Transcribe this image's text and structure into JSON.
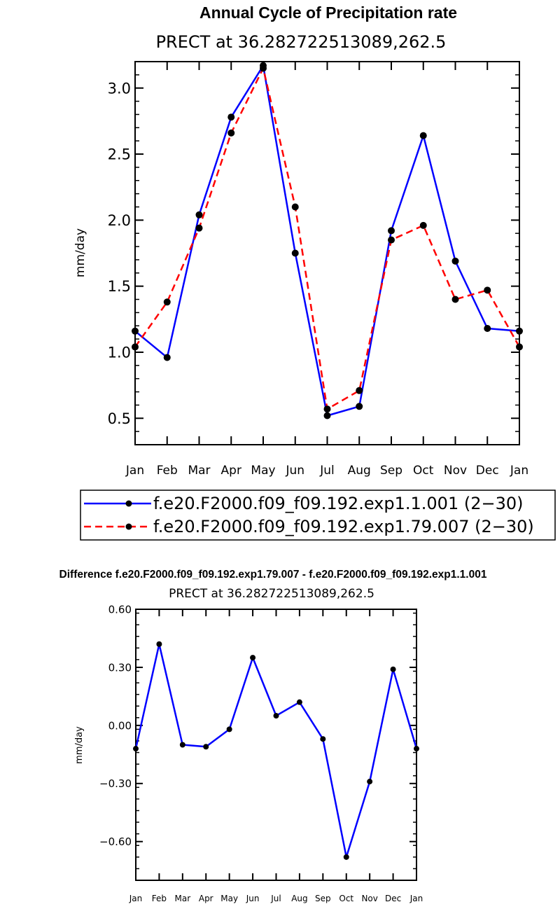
{
  "chart_data": [
    {
      "type": "line",
      "title": "Annual Cycle of Precipitation rate",
      "subtitle": "PRECT at 36.282722513089,262.5",
      "ylabel": "mm/day",
      "xlabel": "",
      "categories": [
        "Jan",
        "Feb",
        "Mar",
        "Apr",
        "May",
        "Jun",
        "Jul",
        "Aug",
        "Sep",
        "Oct",
        "Nov",
        "Dec",
        "Jan"
      ],
      "ylim": [
        0.3,
        3.2
      ],
      "yticks": [
        0.5,
        1.0,
        1.5,
        2.0,
        2.5,
        3.0
      ],
      "ytick_labels": [
        "0.5",
        "1.0",
        "1.5",
        "2.0",
        "2.5",
        "3.0"
      ],
      "legend": "bottom",
      "series": [
        {
          "name": "f.e20.F2000.f09_f09.192.exp1.1.001 (2−30)",
          "color": "#0000ff",
          "dash": "solid",
          "values": [
            1.16,
            0.96,
            2.04,
            2.78,
            3.17,
            1.75,
            0.52,
            0.59,
            1.92,
            2.64,
            1.69,
            1.18,
            1.16
          ]
        },
        {
          "name": "f.e20.F2000.f09_f09.192.exp1.79.007 (2−30)",
          "color": "#ff0000",
          "dash": "dashed",
          "values": [
            1.04,
            1.38,
            1.94,
            2.66,
            3.15,
            2.1,
            0.57,
            0.71,
            1.85,
            1.96,
            1.4,
            1.47,
            1.04
          ]
        }
      ]
    },
    {
      "type": "line",
      "title": "Difference f.e20.F2000.f09_f09.192.exp1.79.007 - f.e20.F2000.f09_f09.192.exp1.1.001",
      "subtitle": "PRECT at 36.282722513089,262.5",
      "ylabel": "mm/day",
      "xlabel": "",
      "categories": [
        "Jan",
        "Feb",
        "Mar",
        "Apr",
        "May",
        "Jun",
        "Jul",
        "Aug",
        "Sep",
        "Oct",
        "Nov",
        "Dec",
        "Jan"
      ],
      "ylim": [
        -0.8,
        0.6
      ],
      "yticks": [
        -0.6,
        -0.3,
        0.0,
        0.3,
        0.6
      ],
      "ytick_labels": [
        "−0.60",
        "−0.30",
        "0.00",
        "0.30",
        "0.60"
      ],
      "series": [
        {
          "color": "#0000ff",
          "dash": "solid",
          "values": [
            -0.12,
            0.42,
            -0.1,
            -0.11,
            -0.02,
            0.35,
            0.05,
            0.12,
            -0.07,
            -0.68,
            -0.29,
            0.29,
            -0.12
          ]
        }
      ]
    }
  ]
}
